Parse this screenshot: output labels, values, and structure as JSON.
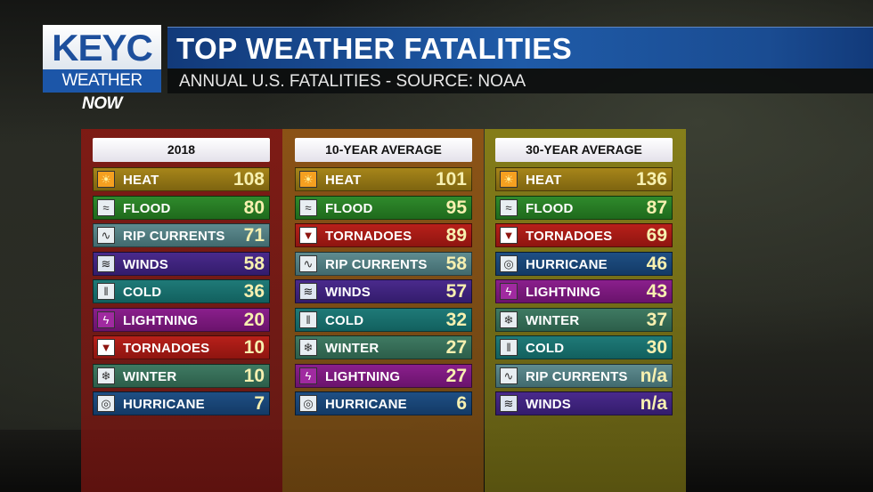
{
  "header": {
    "logo_top": "KEYC",
    "logo_weather": "WEATHER",
    "logo_now": "NOW",
    "title": "TOP WEATHER FATALITIES",
    "subtitle": "ANNUAL U.S. FATALITIES - SOURCE:  NOAA"
  },
  "columns": [
    {
      "heading": "2018",
      "rows": [
        {
          "label": "HEAT",
          "value": "108",
          "kind": "heat",
          "icon": "sun-icon"
        },
        {
          "label": "FLOOD",
          "value": "80",
          "kind": "flood",
          "icon": "flood-icon"
        },
        {
          "label": "RIP CURRENTS",
          "value": "71",
          "kind": "rip",
          "icon": "wave-icon"
        },
        {
          "label": "WINDS",
          "value": "58",
          "kind": "winds",
          "icon": "wind-icon"
        },
        {
          "label": "COLD",
          "value": "36",
          "kind": "cold",
          "icon": "icicle-icon"
        },
        {
          "label": "LIGHTNING",
          "value": "20",
          "kind": "lightning",
          "icon": "lightning-icon"
        },
        {
          "label": "TORNADOES",
          "value": "10",
          "kind": "tornadoes",
          "icon": "tornado-icon"
        },
        {
          "label": "WINTER",
          "value": "10",
          "kind": "winter",
          "icon": "snowflake-icon"
        },
        {
          "label": "HURRICANE",
          "value": "7",
          "kind": "hurricane",
          "icon": "hurricane-icon"
        }
      ]
    },
    {
      "heading": "10-YEAR AVERAGE",
      "rows": [
        {
          "label": "HEAT",
          "value": "101",
          "kind": "heat",
          "icon": "sun-icon"
        },
        {
          "label": "FLOOD",
          "value": "95",
          "kind": "flood",
          "icon": "flood-icon"
        },
        {
          "label": "TORNADOES",
          "value": "89",
          "kind": "tornadoes",
          "icon": "tornado-icon"
        },
        {
          "label": "RIP CURRENTS",
          "value": "58",
          "kind": "rip",
          "icon": "wave-icon"
        },
        {
          "label": "WINDS",
          "value": "57",
          "kind": "winds",
          "icon": "wind-icon"
        },
        {
          "label": "COLD",
          "value": "32",
          "kind": "cold",
          "icon": "icicle-icon"
        },
        {
          "label": "WINTER",
          "value": "27",
          "kind": "winter",
          "icon": "snowflake-icon"
        },
        {
          "label": "LIGHTNING",
          "value": "27",
          "kind": "lightning",
          "icon": "lightning-icon"
        },
        {
          "label": "HURRICANE",
          "value": "6",
          "kind": "hurricane",
          "icon": "hurricane-icon"
        }
      ]
    },
    {
      "heading": "30-YEAR AVERAGE",
      "rows": [
        {
          "label": "HEAT",
          "value": "136",
          "kind": "heat",
          "icon": "sun-icon"
        },
        {
          "label": "FLOOD",
          "value": "87",
          "kind": "flood",
          "icon": "flood-icon"
        },
        {
          "label": "TORNADOES",
          "value": "69",
          "kind": "tornadoes",
          "icon": "tornado-icon"
        },
        {
          "label": "HURRICANE",
          "value": "46",
          "kind": "hurricane",
          "icon": "hurricane-icon"
        },
        {
          "label": "LIGHTNING",
          "value": "43",
          "kind": "lightning",
          "icon": "lightning-icon"
        },
        {
          "label": "WINTER",
          "value": "37",
          "kind": "winter",
          "icon": "snowflake-icon"
        },
        {
          "label": "COLD",
          "value": "30",
          "kind": "cold",
          "icon": "icicle-icon"
        },
        {
          "label": "RIP CURRENTS",
          "value": "n/a",
          "kind": "rip",
          "icon": "wave-icon"
        },
        {
          "label": "WINDS",
          "value": "n/a",
          "kind": "winds",
          "icon": "wind-icon"
        }
      ]
    }
  ]
}
